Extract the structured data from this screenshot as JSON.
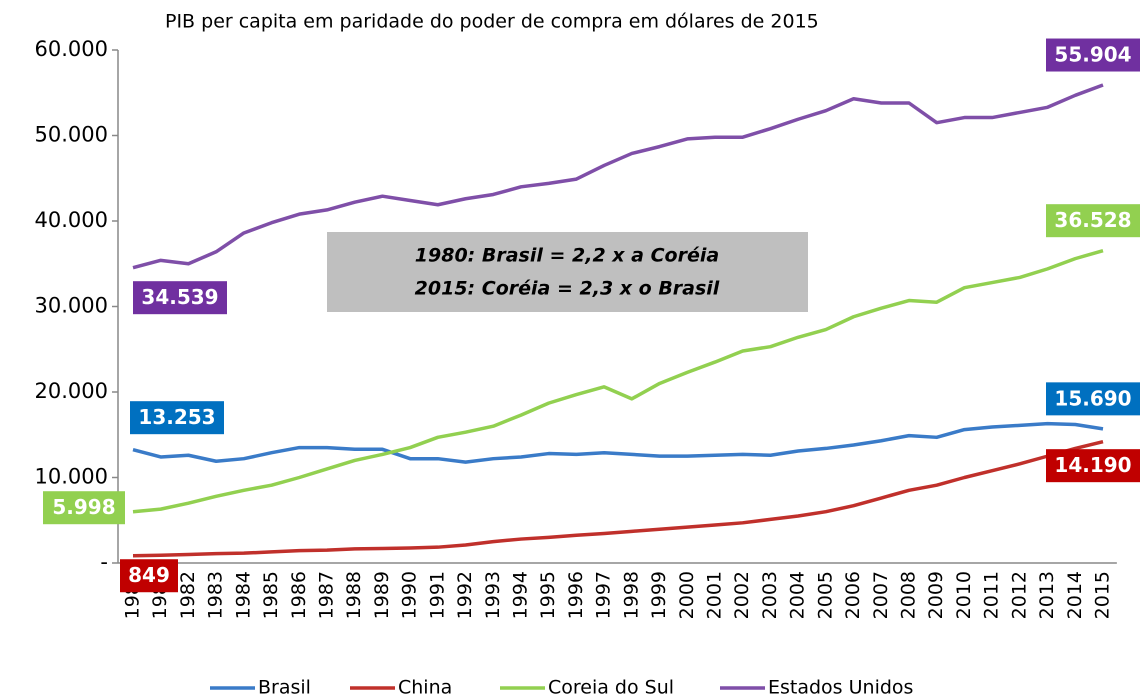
{
  "chart_data": {
    "type": "line",
    "title": "PIB per capita em paridade do poder de compra em dólares de 2015",
    "annotations": [
      "1980: Brasil = 2,2 x a Coréia",
      "2015: Coréia = 2,3 x o Brasil"
    ],
    "categories": [
      "1980",
      "1981",
      "1982",
      "1983",
      "1984",
      "1985",
      "1986",
      "1987",
      "1988",
      "1989",
      "1990",
      "1991",
      "1992",
      "1993",
      "1994",
      "1995",
      "1996",
      "1997",
      "1998",
      "1999",
      "2000",
      "2001",
      "2002",
      "2003",
      "2004",
      "2005",
      "2006",
      "2007",
      "2008",
      "2009",
      "2010",
      "2011",
      "2012",
      "2013",
      "2014",
      "2015"
    ],
    "ylim": [
      0,
      60000
    ],
    "yticks": [
      {
        "value": 0,
        "label": "-"
      },
      {
        "value": 10000,
        "label": "10.000"
      },
      {
        "value": 20000,
        "label": "20.000"
      },
      {
        "value": 30000,
        "label": "30.000"
      },
      {
        "value": 40000,
        "label": "40.000"
      },
      {
        "value": 50000,
        "label": "50.000"
      },
      {
        "value": 60000,
        "label": "60.000"
      }
    ],
    "grid": false,
    "legend": "bottom",
    "series": [
      {
        "name": "Brasil",
        "color": "#3a7bc8",
        "label_color": "#0070c0",
        "values": [
          13253,
          12400,
          12600,
          11900,
          12200,
          12900,
          13500,
          13500,
          13300,
          13300,
          12200,
          12200,
          11800,
          12200,
          12400,
          12800,
          12700,
          12900,
          12700,
          12500,
          12500,
          12600,
          12700,
          12600,
          13100,
          13400,
          13800,
          14300,
          14900,
          14700,
          15600,
          15900,
          16100,
          16300,
          16200,
          15690
        ],
        "value_labels": [
          "13.253",
          null,
          null,
          null,
          null,
          null,
          null,
          null,
          null,
          null,
          null,
          null,
          null,
          null,
          null,
          null,
          null,
          null,
          null,
          null,
          null,
          null,
          null,
          null,
          null,
          null,
          null,
          null,
          null,
          null,
          null,
          null,
          null,
          null,
          null,
          "15.690"
        ]
      },
      {
        "name": "China",
        "color": "#c0302b",
        "label_color": "#c00000",
        "values": [
          849,
          900,
          1000,
          1100,
          1150,
          1300,
          1450,
          1500,
          1650,
          1700,
          1750,
          1850,
          2100,
          2500,
          2800,
          3000,
          3250,
          3450,
          3700,
          3950,
          4200,
          4450,
          4700,
          5100,
          5500,
          6000,
          6700,
          7600,
          8500,
          9100,
          10000,
          10800,
          11600,
          12500,
          13400,
          14190
        ],
        "value_labels": [
          "849",
          null,
          null,
          null,
          null,
          null,
          null,
          null,
          null,
          null,
          null,
          null,
          null,
          null,
          null,
          null,
          null,
          null,
          null,
          null,
          null,
          null,
          null,
          null,
          null,
          null,
          null,
          null,
          null,
          null,
          null,
          null,
          null,
          null,
          null,
          "14.190"
        ]
      },
      {
        "name": "Coreia do Sul",
        "color": "#92d050",
        "label_color": "#92d050",
        "values": [
          5998,
          6300,
          7000,
          7800,
          8500,
          9100,
          10000,
          11000,
          12000,
          12700,
          13500,
          14700,
          15300,
          16000,
          17300,
          18700,
          19700,
          20600,
          19200,
          21000,
          22300,
          23500,
          24800,
          25300,
          26400,
          27300,
          28800,
          29800,
          30700,
          30500,
          32200,
          32800,
          33400,
          34400,
          35600,
          36528
        ],
        "value_labels": [
          "5.998",
          null,
          null,
          null,
          null,
          null,
          null,
          null,
          null,
          null,
          null,
          null,
          null,
          null,
          null,
          null,
          null,
          null,
          null,
          null,
          null,
          null,
          null,
          null,
          null,
          null,
          null,
          null,
          null,
          null,
          null,
          null,
          null,
          null,
          null,
          "36.528"
        ]
      },
      {
        "name": "Estados Unidos",
        "color": "#7f4fa8",
        "label_color": "#7030a0",
        "values": [
          34539,
          35400,
          35000,
          36400,
          38600,
          39800,
          40800,
          41300,
          42200,
          42900,
          42400,
          41900,
          42600,
          43100,
          44000,
          44400,
          44900,
          46500,
          47900,
          48700,
          49600,
          49800,
          49800,
          50800,
          51900,
          52900,
          54300,
          53800,
          53800,
          51500,
          52100,
          52100,
          52700,
          53300,
          54700,
          55904
        ],
        "value_labels": [
          "34.539",
          null,
          null,
          null,
          null,
          null,
          null,
          null,
          null,
          null,
          null,
          null,
          null,
          null,
          null,
          null,
          null,
          null,
          null,
          null,
          null,
          null,
          null,
          null,
          null,
          null,
          null,
          null,
          null,
          null,
          null,
          null,
          null,
          null,
          null,
          "55.904"
        ]
      }
    ]
  }
}
